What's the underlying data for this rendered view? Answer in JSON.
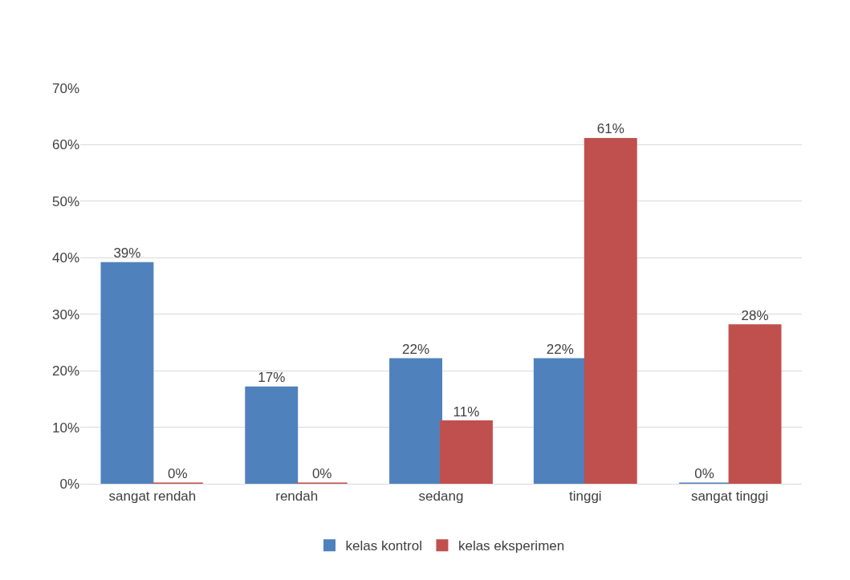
{
  "chart_data": {
    "type": "bar",
    "categories": [
      "sangat rendah",
      "rendah",
      "sedang",
      "tinggi",
      "sangat tinggi"
    ],
    "series": [
      {
        "name": "kelas kontrol",
        "color": "#4f81bd",
        "values": [
          39,
          17,
          22,
          22,
          0
        ],
        "value_labels": [
          "39%",
          "17%",
          "22%",
          "22%",
          "0%"
        ]
      },
      {
        "name": "kelas eksperimen",
        "color": "#c0504d",
        "values": [
          0,
          0,
          11,
          61,
          28
        ],
        "value_labels": [
          "0%",
          "0%",
          "11%",
          "61%",
          "28%"
        ]
      }
    ],
    "ylim": [
      0,
      70
    ],
    "yticks": [
      {
        "value": 0,
        "label": "0%"
      },
      {
        "value": 10,
        "label": "10%"
      },
      {
        "value": 20,
        "label": "20%"
      },
      {
        "value": 30,
        "label": "30%"
      },
      {
        "value": 40,
        "label": "40%"
      },
      {
        "value": 50,
        "label": "50%"
      },
      {
        "value": 60,
        "label": "60%"
      },
      {
        "value": 70,
        "label": "70%"
      }
    ],
    "grid": "y",
    "legend": "bottom"
  }
}
